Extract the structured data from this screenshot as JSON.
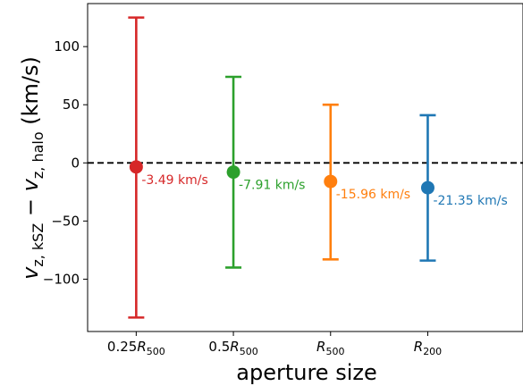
{
  "chart_data": {
    "type": "scatter",
    "xlabel": "aperture size",
    "ylabel_parts": {
      "v1": "v",
      "sub1": "z, kSZ",
      "minus": " − ",
      "v2": "v",
      "sub2": "z, halo",
      "unit": " (km/s)"
    },
    "ylim": [
      -145,
      137
    ],
    "yticks": [
      100,
      50,
      0,
      -50,
      -100
    ],
    "ytick_labels": [
      "100",
      "50",
      "0",
      "−50",
      "−100"
    ],
    "xlim": [
      -0.5,
      3.98
    ],
    "reference_line": {
      "y": 0,
      "style": "dashed",
      "color": "#000000"
    },
    "grid": false,
    "points": [
      {
        "category": {
          "pre": "0.25",
          "sym": "R",
          "sub": "500"
        },
        "value": -3.49,
        "err_low": -133,
        "err_high": 125,
        "label": "-3.49 km/s",
        "color": "#d62728"
      },
      {
        "category": {
          "pre": "0.5",
          "sym": "R",
          "sub": "500"
        },
        "value": -7.91,
        "err_low": -90,
        "err_high": 74,
        "label": "-7.91 km/s",
        "color": "#2ca02c"
      },
      {
        "category": {
          "pre": "",
          "sym": "R",
          "sub": "500"
        },
        "value": -15.96,
        "err_low": -83,
        "err_high": 50,
        "label": "-15.96 km/s",
        "color": "#ff7f0e"
      },
      {
        "category": {
          "pre": "",
          "sym": "R",
          "sub": "200"
        },
        "value": -21.35,
        "err_low": -84,
        "err_high": 41,
        "label": "-21.35 km/s",
        "color": "#1f77b4"
      }
    ]
  }
}
